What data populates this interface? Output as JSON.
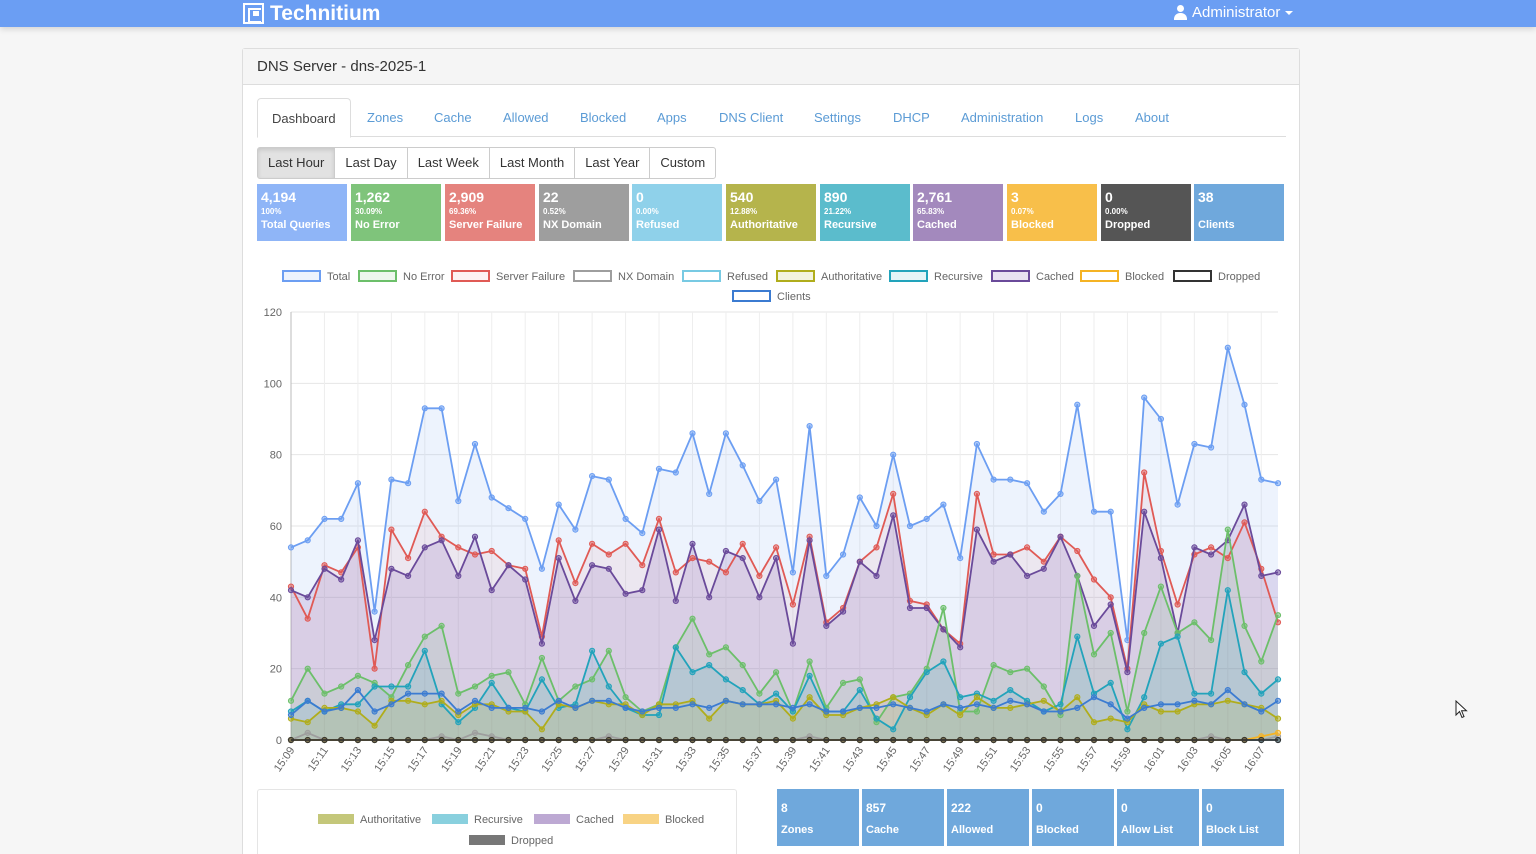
{
  "app": {
    "brand": "Technitium",
    "user": "Administrator"
  },
  "panel": {
    "title": "DNS Server - dns-2025-1"
  },
  "tabs": [
    "Dashboard",
    "Zones",
    "Cache",
    "Allowed",
    "Blocked",
    "Apps",
    "DNS Client",
    "Settings",
    "DHCP",
    "Administration",
    "Logs",
    "About"
  ],
  "periods": [
    "Last Hour",
    "Last Day",
    "Last Week",
    "Last Month",
    "Last Year",
    "Custom"
  ],
  "stats": [
    {
      "value": "4,194",
      "percent": "100%",
      "label": "Total Queries",
      "color": "#8fb5f7"
    },
    {
      "value": "1,262",
      "percent": "30.09%",
      "label": "No Error",
      "color": "#7fc47b"
    },
    {
      "value": "2,909",
      "percent": "69.36%",
      "label": "Server Failure",
      "color": "#e5837e"
    },
    {
      "value": "22",
      "percent": "0.52%",
      "label": "NX Domain",
      "color": "#9e9e9e"
    },
    {
      "value": "0",
      "percent": "0.00%",
      "label": "Refused",
      "color": "#8fd1ea"
    },
    {
      "value": "540",
      "percent": "12.88%",
      "label": "Authoritative",
      "color": "#b5b44c"
    },
    {
      "value": "890",
      "percent": "21.22%",
      "label": "Recursive",
      "color": "#5bbccc"
    },
    {
      "value": "2,761",
      "percent": "65.83%",
      "label": "Cached",
      "color": "#a389bd"
    },
    {
      "value": "3",
      "percent": "0.07%",
      "label": "Blocked",
      "color": "#f8bf4a"
    },
    {
      "value": "0",
      "percent": "0.00%",
      "label": "Dropped",
      "color": "#555555"
    },
    {
      "value": "38",
      "percent": "",
      "label": "Clients",
      "color": "#6fa8dc"
    }
  ],
  "bottom_stats": [
    {
      "value": "8",
      "label": "Zones"
    },
    {
      "value": "857",
      "label": "Cache"
    },
    {
      "value": "222",
      "label": "Allowed"
    },
    {
      "value": "0",
      "label": "Blocked"
    },
    {
      "value": "0",
      "label": "Allow List"
    },
    {
      "value": "0",
      "label": "Block List"
    }
  ],
  "doughnut_legend": [
    {
      "name": "Authoritative",
      "color": "#c4c77a"
    },
    {
      "name": "Recursive",
      "color": "#89d0de"
    },
    {
      "name": "Cached",
      "color": "#bda9d3"
    },
    {
      "name": "Blocked",
      "color": "#f8d384"
    },
    {
      "name": "Dropped",
      "color": "#777777"
    }
  ],
  "chart_data": {
    "type": "line",
    "ylim": [
      0,
      120
    ],
    "yticks": [
      0,
      20,
      40,
      60,
      80,
      100,
      120
    ],
    "grid": true,
    "legend_position": "top",
    "x": [
      "15:09",
      "15:10",
      "15:11",
      "15:12",
      "15:13",
      "15:14",
      "15:15",
      "15:16",
      "15:17",
      "15:18",
      "15:19",
      "15:20",
      "15:21",
      "15:22",
      "15:23",
      "15:24",
      "15:25",
      "15:26",
      "15:27",
      "15:28",
      "15:29",
      "15:30",
      "15:31",
      "15:32",
      "15:33",
      "15:34",
      "15:35",
      "15:36",
      "15:37",
      "15:38",
      "15:39",
      "15:40",
      "15:41",
      "15:42",
      "15:43",
      "15:44",
      "15:45",
      "15:46",
      "15:47",
      "15:48",
      "15:49",
      "15:50",
      "15:51",
      "15:52",
      "15:53",
      "15:54",
      "15:55",
      "15:56",
      "15:57",
      "15:58",
      "15:59",
      "16:00",
      "16:01",
      "16:02",
      "16:03",
      "16:04",
      "16:05",
      "16:06",
      "16:07",
      "16:08"
    ],
    "xticks": [
      "15:09",
      "15:11",
      "15:13",
      "15:15",
      "15:17",
      "15:19",
      "15:21",
      "15:23",
      "15:25",
      "15:27",
      "15:29",
      "15:31",
      "15:33",
      "15:35",
      "15:37",
      "15:39",
      "15:41",
      "15:43",
      "15:45",
      "15:47",
      "15:49",
      "15:51",
      "15:53",
      "15:55",
      "15:57",
      "15:59",
      "16:01",
      "16:03",
      "16:05",
      "16:07"
    ],
    "series": [
      {
        "name": "Total",
        "color": "#6c9ef2",
        "fill": "rgba(108,158,242,0.12)",
        "values": [
          54,
          56,
          62,
          62,
          72,
          36,
          73,
          72,
          93,
          93,
          67,
          83,
          68,
          65,
          62,
          48,
          66,
          59,
          74,
          73,
          62,
          58,
          76,
          75,
          86,
          69,
          86,
          77,
          67,
          73,
          47,
          88,
          46,
          52,
          68,
          60,
          80,
          60,
          62,
          66,
          51,
          83,
          73,
          73,
          72,
          64,
          69,
          94,
          64,
          64,
          28,
          96,
          90,
          66,
          83,
          82,
          110,
          94,
          73,
          72
        ]
      },
      {
        "name": "No Error",
        "color": "#6cbf6a",
        "fill": "rgba(108,191,106,0.12)",
        "values": [
          11,
          20,
          13,
          15,
          18,
          16,
          12,
          21,
          29,
          32,
          13,
          15,
          18,
          19,
          10,
          23,
          11,
          15,
          17,
          25,
          12,
          8,
          10,
          26,
          34,
          24,
          26,
          21,
          13,
          19,
          8,
          22,
          9,
          16,
          17,
          5,
          12,
          13,
          20,
          37,
          8,
          8,
          21,
          19,
          20,
          15,
          7,
          46,
          24,
          30,
          8,
          30,
          43,
          30,
          33,
          28,
          59,
          32,
          22,
          35
        ]
      },
      {
        "name": "Server Failure",
        "color": "#e05a55",
        "fill": "rgba(224,90,85,0.08)",
        "values": [
          43,
          34,
          49,
          47,
          54,
          20,
          59,
          51,
          64,
          57,
          54,
          52,
          53,
          49,
          48,
          29,
          56,
          44,
          55,
          52,
          55,
          49,
          62,
          47,
          51,
          50,
          47,
          55,
          46,
          54,
          38,
          57,
          33,
          37,
          50,
          54,
          69,
          39,
          38,
          31,
          27,
          69,
          52,
          52,
          54,
          50,
          57,
          53,
          45,
          40,
          20,
          75,
          53,
          38,
          52,
          54,
          51,
          61,
          48,
          33
        ]
      },
      {
        "name": "NX Domain",
        "color": "#9e9e9e",
        "fill": "rgba(158,158,158,0)",
        "values": [
          0,
          2,
          0,
          0,
          0,
          0,
          0,
          0,
          0,
          1,
          0,
          2,
          1,
          0,
          0,
          0,
          0,
          0,
          0,
          1,
          0,
          0,
          0,
          0,
          0,
          0,
          0,
          0,
          0,
          0,
          0,
          1,
          0,
          0,
          0,
          0,
          0,
          0,
          0,
          0,
          0,
          0,
          0,
          0,
          0,
          0,
          0,
          0,
          0,
          0,
          0,
          0,
          0,
          0,
          0,
          1,
          0,
          0,
          0,
          1
        ]
      },
      {
        "name": "Refused",
        "color": "#78cae3",
        "fill": "rgba(120,202,227,0)",
        "values": [
          0,
          0,
          0,
          0,
          0,
          0,
          0,
          0,
          0,
          0,
          0,
          0,
          0,
          0,
          0,
          0,
          0,
          0,
          0,
          0,
          0,
          0,
          0,
          0,
          0,
          0,
          0,
          0,
          0,
          0,
          0,
          0,
          0,
          0,
          0,
          0,
          0,
          0,
          0,
          0,
          0,
          0,
          0,
          0,
          0,
          0,
          0,
          0,
          0,
          0,
          0,
          0,
          0,
          0,
          0,
          0,
          0,
          0,
          0,
          0
        ]
      },
      {
        "name": "Authoritative",
        "color": "#b0ad1c",
        "fill": "rgba(176,173,28,0.15)",
        "values": [
          6,
          5,
          9,
          9,
          8,
          4,
          11,
          11,
          10,
          11,
          7,
          10,
          10,
          8,
          8,
          3,
          10,
          9,
          11,
          10,
          10,
          7,
          10,
          10,
          11,
          6,
          11,
          10,
          10,
          11,
          6,
          12,
          7,
          7,
          9,
          10,
          12,
          9,
          7,
          10,
          7,
          12,
          9,
          9,
          10,
          11,
          8,
          12,
          5,
          6,
          5,
          10,
          8,
          8,
          10,
          10,
          11,
          10,
          9,
          6
        ]
      },
      {
        "name": "Recursive",
        "color": "#22a3bb",
        "fill": "rgba(34,163,187,0.12)",
        "values": [
          8,
          11,
          8,
          10,
          10,
          15,
          15,
          15,
          25,
          10,
          5,
          9,
          16,
          9,
          8,
          17,
          9,
          10,
          25,
          15,
          9,
          7,
          7,
          26,
          19,
          21,
          17,
          14,
          10,
          13,
          8,
          18,
          8,
          8,
          14,
          6,
          3,
          12,
          19,
          22,
          12,
          13,
          11,
          14,
          11,
          8,
          10,
          29,
          13,
          16,
          3,
          12,
          27,
          29,
          13,
          13,
          42,
          19,
          13,
          17
        ]
      },
      {
        "name": "Cached",
        "color": "#6a4a9a",
        "fill": "rgba(150,120,190,0.22)",
        "values": [
          42,
          40,
          48,
          45,
          56,
          28,
          48,
          46,
          54,
          56,
          46,
          57,
          42,
          49,
          45,
          27,
          51,
          39,
          49,
          48,
          41,
          42,
          59,
          39,
          55,
          40,
          53,
          51,
          40,
          51,
          27,
          56,
          32,
          36,
          50,
          46,
          63,
          37,
          37,
          31,
          26,
          59,
          50,
          52,
          46,
          48,
          57,
          46,
          32,
          38,
          19,
          64,
          51,
          30,
          54,
          52,
          56,
          66,
          46,
          47
        ]
      },
      {
        "name": "Blocked",
        "color": "#f5b324",
        "fill": "rgba(245,179,36,0)",
        "values": [
          0,
          0,
          0,
          0,
          0,
          0,
          0,
          0,
          0,
          0,
          0,
          0,
          0,
          0,
          0,
          0,
          0,
          0,
          0,
          0,
          0,
          0,
          0,
          0,
          0,
          0,
          0,
          0,
          0,
          0,
          0,
          0,
          0,
          0,
          0,
          0,
          0,
          0,
          0,
          0,
          0,
          0,
          0,
          0,
          0,
          0,
          0,
          0,
          0,
          0,
          0,
          0,
          0,
          0,
          0,
          0,
          0,
          0,
          1,
          2
        ]
      },
      {
        "name": "Dropped",
        "color": "#333333",
        "fill": "rgba(51,51,51,0)",
        "values": [
          0,
          0,
          0,
          0,
          0,
          0,
          0,
          0,
          0,
          0,
          0,
          0,
          0,
          0,
          0,
          0,
          0,
          0,
          0,
          0,
          0,
          0,
          0,
          0,
          0,
          0,
          0,
          0,
          0,
          0,
          0,
          0,
          0,
          0,
          0,
          0,
          0,
          0,
          0,
          0,
          0,
          0,
          0,
          0,
          0,
          0,
          0,
          0,
          0,
          0,
          0,
          0,
          0,
          0,
          0,
          0,
          0,
          0,
          0,
          0
        ]
      },
      {
        "name": "Clients",
        "color": "#3b7bd1",
        "fill": "rgba(59,123,209,0)",
        "values": [
          7,
          11,
          8,
          9,
          14,
          8,
          10,
          13,
          13,
          13,
          8,
          11,
          9,
          9,
          9,
          8,
          11,
          9,
          11,
          11,
          9,
          8,
          9,
          9,
          10,
          9,
          11,
          10,
          10,
          10,
          9,
          10,
          8,
          8,
          9,
          9,
          10,
          9,
          8,
          10,
          9,
          10,
          9,
          11,
          10,
          8,
          8,
          9,
          12,
          10,
          6,
          9,
          10,
          10,
          11,
          10,
          14,
          10,
          8,
          11
        ]
      }
    ]
  }
}
